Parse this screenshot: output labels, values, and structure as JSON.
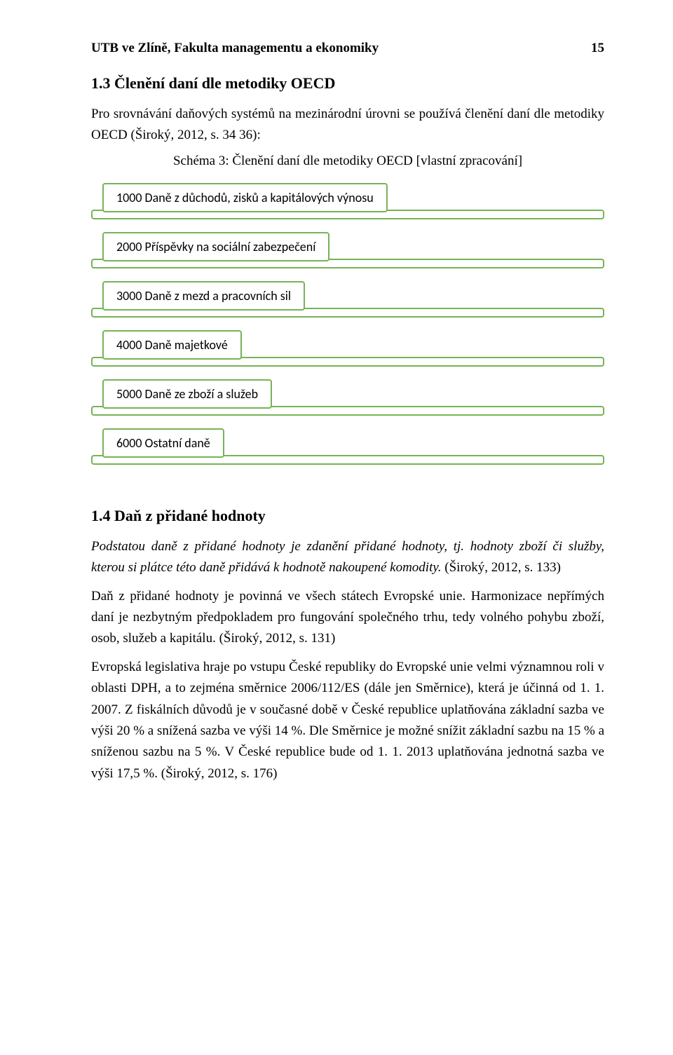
{
  "header": {
    "left": "UTB ve Zlíně, Fakulta managementu a ekonomiky",
    "pageNumber": "15"
  },
  "section_1_3": {
    "heading": "1.3   Členění daní dle metodiky OECD",
    "intro": "Pro srovnávání daňových systémů na mezinárodní úrovni se používá členění daní dle metodiky OECD (Široký, 2012, s. 34 36):",
    "caption": "Schéma 3: Členění daní dle metodiky OECD [vlastní zpracování]",
    "categories": [
      "1000 Daně z důchodů, zisků a kapitálových výnosu",
      "2000 Příspěvky na sociální zabezpečení",
      "3000 Daně z mezd a pracovních sil",
      "4000 Daně majetkové",
      "5000 Daně ze zboží a služeb",
      "6000 Ostatní daně"
    ]
  },
  "section_1_4": {
    "heading": "1.4   Daň z přidané hodnoty",
    "para1_italic": "Podstatou daně z přidané hodnoty je zdanění přidané hodnoty, tj. hodnoty zboží či služby, kterou si plátce této daně přidává k hodnotě nakoupené komodity.",
    "para1_ref": " (Široký, 2012, s. 133)",
    "para2": "Daň z přidané hodnoty je povinná ve všech státech Evropské unie. Harmonizace nepřímých daní je nezbytným předpokladem pro fungování společného trhu, tedy volného pohybu zboží, osob, služeb a kapitálu. (Široký, 2012, s. 131)",
    "para3": "Evropská legislativa hraje po vstupu České republiky do Evropské unie velmi významnou roli v oblasti DPH, a to zejména směrnice 2006/112/ES (dále jen Směrnice), která je účinná od 1. 1. 2007. Z fiskálních důvodů je v současné době v České republice uplatňována základní sazba ve výši 20 % a snížená sazba ve výši 14 %. Dle Směrnice je možné snížit základní sazbu na 15 % a sníženou sazbu na 5 %. V České republice bude od 1. 1. 2013 uplatňována jednotná sazba ve výši 17,5 %. (Široký, 2012, s. 176)"
  },
  "styles": {
    "accent_color": "#77b356",
    "background_color": "#ffffff",
    "text_color": "#000000",
    "body_font": "Times New Roman",
    "diagram_font": "Calibri",
    "body_fontsize": 19,
    "heading_fontsize": 22
  }
}
